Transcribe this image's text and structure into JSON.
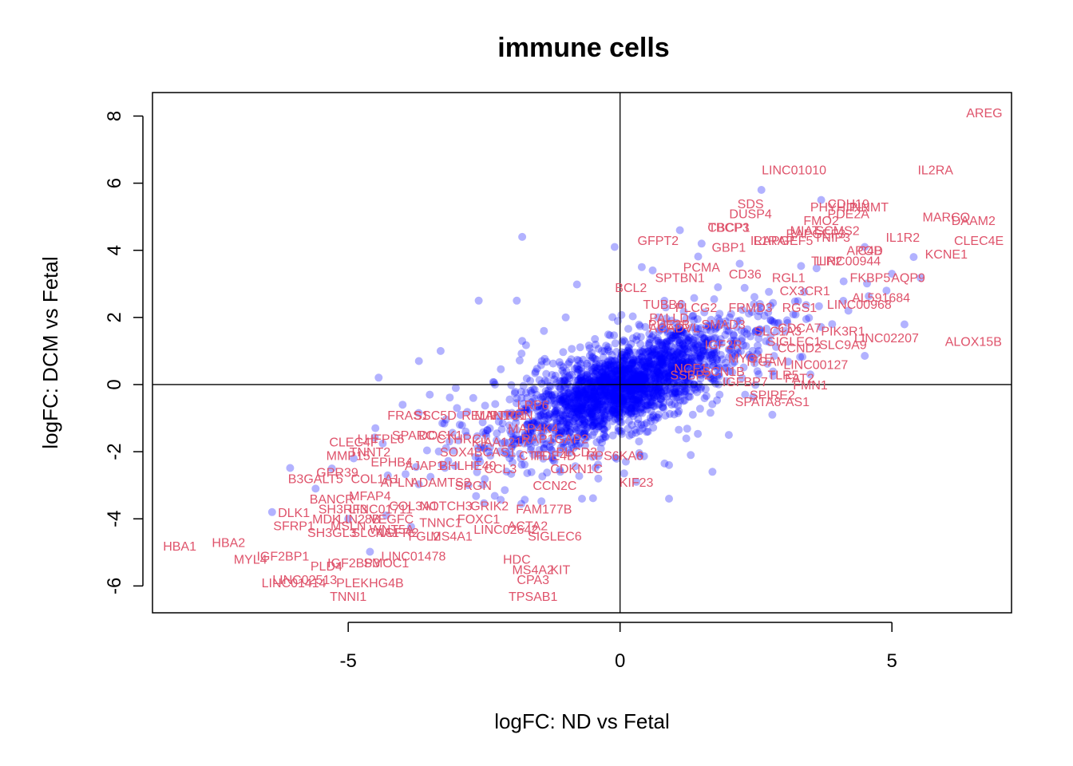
{
  "chart_data": {
    "type": "scatter",
    "title": "immune cells",
    "xlabel": "logFC: ND vs Fetal",
    "ylabel": "logFC: DCM vs Fetal",
    "xlim": [
      -8.6,
      7.2
    ],
    "ylim": [
      -6.8,
      8.7
    ],
    "xticks": [
      -5,
      0,
      5
    ],
    "yticks": [
      -6,
      -4,
      -2,
      0,
      2,
      4,
      6,
      8
    ],
    "reference_lines": {
      "x": 0,
      "y": 0
    },
    "point_color": "#0000ff",
    "label_color": "#df536b",
    "cloud_points": [
      [
        -1.8,
        4.4
      ],
      [
        -1.9,
        2.5
      ],
      [
        -2.6,
        2.5
      ],
      [
        -1.8,
        1.3
      ],
      [
        0.4,
        3.5
      ],
      [
        -0.1,
        4.1
      ],
      [
        0.6,
        3.4
      ],
      [
        0.7,
        2.0
      ],
      [
        1.1,
        4.6
      ],
      [
        1.5,
        4.2
      ],
      [
        2.6,
        5.8
      ],
      [
        3.7,
        5.5
      ],
      [
        4.5,
        4.1
      ],
      [
        5.0,
        3.3
      ],
      [
        5.4,
        3.8
      ],
      [
        4.9,
        2.8
      ],
      [
        -3.7,
        0.7
      ],
      [
        -3.3,
        1.0
      ],
      [
        -2.7,
        -0.4
      ],
      [
        -2.1,
        -0.9
      ],
      [
        -4.0,
        -0.6
      ],
      [
        -3.0,
        -0.7
      ],
      [
        -2.0,
        -1.9
      ],
      [
        -0.7,
        -3.4
      ],
      [
        0.9,
        -2.4
      ],
      [
        1.3,
        -2.1
      ],
      [
        2.0,
        -1.5
      ],
      [
        2.8,
        -0.9
      ],
      [
        2.3,
        -0.3
      ],
      [
        3.5,
        0.3
      ],
      [
        0.9,
        -3.4
      ],
      [
        1.7,
        -2.6
      ],
      [
        0.3,
        -2.9
      ],
      [
        -0.4,
        -2.8
      ],
      [
        4.2,
        2.2
      ],
      [
        3.9,
        1.8
      ],
      [
        1.8,
        2.9
      ],
      [
        2.2,
        3.6
      ],
      [
        -1.0,
        2.0
      ],
      [
        -1.4,
        1.6
      ],
      [
        -2.3,
        0.0
      ],
      [
        -1.1,
        -2.6
      ],
      [
        -4.5,
        -1.3
      ],
      [
        -3.5,
        -0.3
      ],
      [
        -4.9,
        -2.2
      ],
      [
        -5.3,
        -2.5
      ],
      [
        -5.6,
        -3.1
      ],
      [
        -6.4,
        -3.8
      ],
      [
        -5.0,
        -4.0
      ],
      [
        -4.3,
        -3.9
      ]
    ],
    "gene_labels": [
      {
        "name": "AREG",
        "x": 6.7,
        "y": 8.1
      },
      {
        "name": "IL2RA",
        "x": 5.8,
        "y": 6.4
      },
      {
        "name": "LINC01010",
        "x": 3.2,
        "y": 6.4
      },
      {
        "name": "SDS",
        "x": 2.4,
        "y": 5.4
      },
      {
        "name": "DUSP4",
        "x": 2.4,
        "y": 5.1
      },
      {
        "name": "CDH19",
        "x": 4.2,
        "y": 5.4
      },
      {
        "name": "PHYHIPL",
        "x": 4.0,
        "y": 5.3
      },
      {
        "name": "NNMT",
        "x": 4.6,
        "y": 5.3
      },
      {
        "name": "PDE2A",
        "x": 4.2,
        "y": 5.1
      },
      {
        "name": "FMO2",
        "x": 3.7,
        "y": 4.9
      },
      {
        "name": "MARCO",
        "x": 6.0,
        "y": 5.0
      },
      {
        "name": "DAAM2",
        "x": 6.5,
        "y": 4.9
      },
      {
        "name": "CBCP1",
        "x": 2.0,
        "y": 4.7
      },
      {
        "name": "TBCP3",
        "x": 2.0,
        "y": 4.7
      },
      {
        "name": "MIAT",
        "x": 3.4,
        "y": 4.6
      },
      {
        "name": "SCMS2",
        "x": 4.0,
        "y": 4.6
      },
      {
        "name": "RAPGEF3",
        "x": 3.6,
        "y": 4.5
      },
      {
        "name": "TNIP3",
        "x": 3.9,
        "y": 4.4
      },
      {
        "name": "IL1R2",
        "x": 5.2,
        "y": 4.4
      },
      {
        "name": "CLEC4E",
        "x": 6.6,
        "y": 4.3
      },
      {
        "name": "GFPT2",
        "x": 0.7,
        "y": 4.3
      },
      {
        "name": "GBP1",
        "x": 2.0,
        "y": 4.1
      },
      {
        "name": "IL1RAP",
        "x": 2.8,
        "y": 4.3
      },
      {
        "name": "RAPGEF5",
        "x": 3.0,
        "y": 4.3
      },
      {
        "name": "APOD",
        "x": 4.5,
        "y": 4.0
      },
      {
        "name": "C4B",
        "x": 4.6,
        "y": 4.0
      },
      {
        "name": "KCNE1",
        "x": 6.0,
        "y": 3.9
      },
      {
        "name": "TLR2",
        "x": 3.8,
        "y": 3.7
      },
      {
        "name": "LINC00944",
        "x": 4.2,
        "y": 3.7
      },
      {
        "name": "PCMA",
        "x": 1.5,
        "y": 3.5
      },
      {
        "name": "SPTBN1",
        "x": 1.1,
        "y": 3.2
      },
      {
        "name": "CD36",
        "x": 2.3,
        "y": 3.3
      },
      {
        "name": "FKBP5",
        "x": 4.6,
        "y": 3.2
      },
      {
        "name": "AQP9",
        "x": 5.3,
        "y": 3.2
      },
      {
        "name": "RGL1",
        "x": 3.1,
        "y": 3.2
      },
      {
        "name": "BCL2",
        "x": 0.2,
        "y": 2.9
      },
      {
        "name": "CX3CR1",
        "x": 3.4,
        "y": 2.8
      },
      {
        "name": "AL591684",
        "x": 4.8,
        "y": 2.6
      },
      {
        "name": "LINC00968",
        "x": 4.4,
        "y": 2.4
      },
      {
        "name": "TUBB6",
        "x": 0.8,
        "y": 2.4
      },
      {
        "name": "PLCG2",
        "x": 1.4,
        "y": 2.3
      },
      {
        "name": "FRMD3",
        "x": 2.4,
        "y": 2.3
      },
      {
        "name": "RGS1",
        "x": 3.3,
        "y": 2.3
      },
      {
        "name": "PALLD",
        "x": 0.9,
        "y": 2.0
      },
      {
        "name": "PDE3B",
        "x": 0.9,
        "y": 1.8
      },
      {
        "name": "ACADVL",
        "x": 1.0,
        "y": 1.7
      },
      {
        "name": "SMAD3",
        "x": 1.9,
        "y": 1.8
      },
      {
        "name": "SLC1A3",
        "x": 2.9,
        "y": 1.6
      },
      {
        "name": "CDCA7",
        "x": 3.3,
        "y": 1.7
      },
      {
        "name": "PIK3R1",
        "x": 4.1,
        "y": 1.6
      },
      {
        "name": "LINC02207",
        "x": 4.9,
        "y": 1.4
      },
      {
        "name": "ALOX15B",
        "x": 6.5,
        "y": 1.3
      },
      {
        "name": "IGF2R",
        "x": 1.9,
        "y": 1.2
      },
      {
        "name": "CCND2",
        "x": 3.3,
        "y": 1.1
      },
      {
        "name": "SIGLEC1",
        "x": 3.2,
        "y": 1.3
      },
      {
        "name": "SLC9A9",
        "x": 4.1,
        "y": 1.2
      },
      {
        "name": "MYO1E",
        "x": 2.4,
        "y": 0.8
      },
      {
        "name": "ITGAM",
        "x": 2.7,
        "y": 0.7
      },
      {
        "name": "LINC00127",
        "x": 3.6,
        "y": 0.6
      },
      {
        "name": "NCF1",
        "x": 1.3,
        "y": 0.5
      },
      {
        "name": "SSBP2",
        "x": 1.3,
        "y": 0.3
      },
      {
        "name": "SCN1B",
        "x": 1.9,
        "y": 0.4
      },
      {
        "name": "IGFBP7",
        "x": 2.3,
        "y": 0.1
      },
      {
        "name": "TLR5",
        "x": 3.0,
        "y": 0.3
      },
      {
        "name": "FAT2",
        "x": 3.3,
        "y": 0.2
      },
      {
        "name": "FMN1",
        "x": 3.5,
        "y": 0.0
      },
      {
        "name": "SPIRE2",
        "x": 2.8,
        "y": -0.3
      },
      {
        "name": "SPATA8-AS1",
        "x": 2.8,
        "y": -0.5
      },
      {
        "name": "LRP6",
        "x": -1.6,
        "y": -0.6
      },
      {
        "name": "FRAS1",
        "x": -3.9,
        "y": -0.9
      },
      {
        "name": "SSC5D",
        "x": -3.4,
        "y": -0.9
      },
      {
        "name": "RELN",
        "x": -2.6,
        "y": -0.9
      },
      {
        "name": "MAN1C1",
        "x": -2.2,
        "y": -0.9
      },
      {
        "name": "PTPRN",
        "x": -2.0,
        "y": -0.9
      },
      {
        "name": "MAP4K4",
        "x": -1.6,
        "y": -1.3
      },
      {
        "name": "CLEC4F",
        "x": -4.9,
        "y": -1.7
      },
      {
        "name": "LHFPL6",
        "x": -4.4,
        "y": -1.6
      },
      {
        "name": "SPARC",
        "x": -3.8,
        "y": -1.5
      },
      {
        "name": "DOCK1",
        "x": -3.3,
        "y": -1.5
      },
      {
        "name": "CTHRC1",
        "x": -2.9,
        "y": -1.6
      },
      {
        "name": "KIAA1217",
        "x": -2.2,
        "y": -1.7
      },
      {
        "name": "RAP1GAP2",
        "x": -1.2,
        "y": -1.6
      },
      {
        "name": "MMP15",
        "x": -5.0,
        "y": -2.1
      },
      {
        "name": "TNNT2",
        "x": -4.6,
        "y": -2.0
      },
      {
        "name": "SOX4",
        "x": -3.0,
        "y": -2.0
      },
      {
        "name": "BCAS1",
        "x": -2.3,
        "y": -2.0
      },
      {
        "name": "CTIF",
        "x": -1.6,
        "y": -2.1
      },
      {
        "name": "PDE4D",
        "x": -1.2,
        "y": -2.1
      },
      {
        "name": "PLCD3",
        "x": -0.8,
        "y": -2.0
      },
      {
        "name": "RPS6KA6",
        "x": -0.1,
        "y": -2.1
      },
      {
        "name": "EPHB4",
        "x": -4.2,
        "y": -2.3
      },
      {
        "name": "AJAP1",
        "x": -3.6,
        "y": -2.4
      },
      {
        "name": "BHLHE40",
        "x": -2.8,
        "y": -2.4
      },
      {
        "name": "CCL3",
        "x": -2.2,
        "y": -2.5
      },
      {
        "name": "CDKN1C",
        "x": -0.8,
        "y": -2.5
      },
      {
        "name": "GPR39",
        "x": -5.2,
        "y": -2.6
      },
      {
        "name": "B3GALT5",
        "x": -5.6,
        "y": -2.8
      },
      {
        "name": "COL1A1",
        "x": -4.5,
        "y": -2.8
      },
      {
        "name": "APLN",
        "x": -4.1,
        "y": -2.9
      },
      {
        "name": "ADAMTS2",
        "x": -3.3,
        "y": -2.9
      },
      {
        "name": "SRGN",
        "x": -2.7,
        "y": -3.0
      },
      {
        "name": "CCN2C",
        "x": -1.2,
        "y": -3.0
      },
      {
        "name": "KIF23",
        "x": 0.3,
        "y": -2.9
      },
      {
        "name": "BANCR",
        "x": -5.3,
        "y": -3.4
      },
      {
        "name": "MFAP4",
        "x": -4.6,
        "y": -3.3
      },
      {
        "name": "SH3RF3",
        "x": -5.1,
        "y": -3.7
      },
      {
        "name": "LINC01711",
        "x": -4.4,
        "y": -3.7
      },
      {
        "name": "COL3A1",
        "x": -3.8,
        "y": -3.6
      },
      {
        "name": "NOTCH3",
        "x": -3.2,
        "y": -3.6
      },
      {
        "name": "GRIK2",
        "x": -2.4,
        "y": -3.6
      },
      {
        "name": "FAM177B",
        "x": -1.4,
        "y": -3.7
      },
      {
        "name": "DLK1",
        "x": -6.0,
        "y": -3.8
      },
      {
        "name": "MDK",
        "x": -5.4,
        "y": -4.0
      },
      {
        "name": "LIN28B",
        "x": -4.8,
        "y": -4.0
      },
      {
        "name": "VEGFC",
        "x": -4.2,
        "y": -4.0
      },
      {
        "name": "TNNC1",
        "x": -3.3,
        "y": -4.1
      },
      {
        "name": "FOXC1",
        "x": -2.6,
        "y": -4.0
      },
      {
        "name": "ACTA2",
        "x": -1.7,
        "y": -4.2
      },
      {
        "name": "SFRP1",
        "x": -6.0,
        "y": -4.2
      },
      {
        "name": "MSLN",
        "x": -5.0,
        "y": -4.2
      },
      {
        "name": "WNT5A",
        "x": -4.2,
        "y": -4.3
      },
      {
        "name": "LINC02642",
        "x": -2.1,
        "y": -4.3
      },
      {
        "name": "SH3GL3",
        "x": -5.3,
        "y": -4.4
      },
      {
        "name": "SLC4A1",
        "x": -4.5,
        "y": -4.4
      },
      {
        "name": "NGFR2",
        "x": -4.1,
        "y": -4.4
      },
      {
        "name": "FGL2",
        "x": -3.6,
        "y": -4.5
      },
      {
        "name": "MS4A1",
        "x": -3.1,
        "y": -4.5
      },
      {
        "name": "SIGLEC6",
        "x": -1.2,
        "y": -4.5
      },
      {
        "name": "HBA1",
        "x": -8.1,
        "y": -4.8
      },
      {
        "name": "HBA2",
        "x": -7.2,
        "y": -4.7
      },
      {
        "name": "LINC01478",
        "x": -3.8,
        "y": -5.1
      },
      {
        "name": "IGF2BP1",
        "x": -6.2,
        "y": -5.1
      },
      {
        "name": "MYL4",
        "x": -6.8,
        "y": -5.2
      },
      {
        "name": "IGF2BP3",
        "x": -4.9,
        "y": -5.3
      },
      {
        "name": "SMOC1",
        "x": -4.3,
        "y": -5.3
      },
      {
        "name": "HDC",
        "x": -1.9,
        "y": -5.2
      },
      {
        "name": "MS4A2",
        "x": -1.6,
        "y": -5.5
      },
      {
        "name": "KIT",
        "x": -1.1,
        "y": -5.5
      },
      {
        "name": "PLD4",
        "x": -5.4,
        "y": -5.4
      },
      {
        "name": "LINC02513",
        "x": -5.8,
        "y": -5.8
      },
      {
        "name": "LINC01414",
        "x": -6.0,
        "y": -5.9
      },
      {
        "name": "PLEKHG4B",
        "x": -4.6,
        "y": -5.9
      },
      {
        "name": "CPA3",
        "x": -1.6,
        "y": -5.8
      },
      {
        "name": "TNNI1",
        "x": -5.0,
        "y": -6.3
      },
      {
        "name": "TPSAB1",
        "x": -1.6,
        "y": -6.3
      }
    ]
  }
}
